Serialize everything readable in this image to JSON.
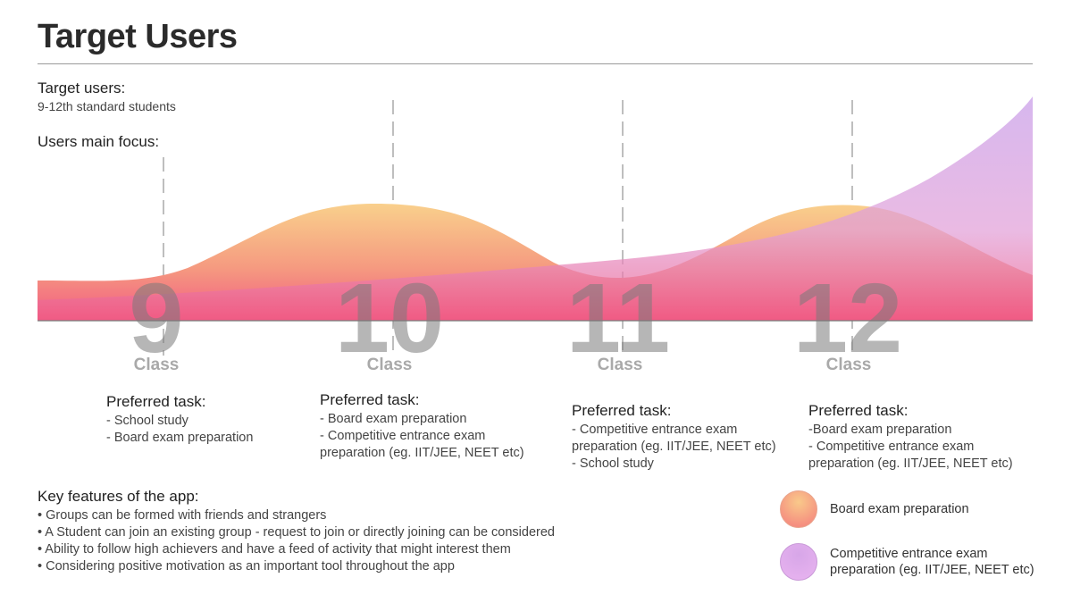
{
  "title": "Target Users",
  "target_users": {
    "label": "Target users:",
    "value": "9-12th standard students"
  },
  "focus_label": "Users main focus:",
  "classes": [
    {
      "number": "9",
      "label": "Class"
    },
    {
      "number": "10",
      "label": "Class"
    },
    {
      "number": "11",
      "label": "Class"
    },
    {
      "number": "12",
      "label": "Class"
    }
  ],
  "tasks": [
    {
      "heading": "Preferred task:",
      "items": [
        "- School study",
        "- Board exam preparation"
      ]
    },
    {
      "heading": "Preferred task:",
      "items": [
        "- Board exam preparation",
        "- Competitive entrance exam",
        "preparation (eg. IIT/JEE, NEET etc)"
      ]
    },
    {
      "heading": "Preferred task:",
      "items": [
        "- Competitive entrance exam",
        "preparation (eg. IIT/JEE, NEET etc)",
        "- School study"
      ]
    },
    {
      "heading": "Preferred task:",
      "items": [
        "-Board exam preparation",
        "- Competitive entrance exam",
        "preparation (eg. IIT/JEE, NEET etc)"
      ]
    }
  ],
  "features": {
    "heading": "Key features of the app:",
    "items": [
      "• Groups can be formed with friends and strangers",
      "• A Student can join an existing group - request to join or directly joining can be considered",
      "• Ability to follow high achievers and have a feed of activity that might interest them",
      "• Considering  positive motivation as an important tool throughout the app"
    ]
  },
  "legend": [
    {
      "label": "Board exam preparation",
      "color": "#f7a77f"
    },
    {
      "label": "Competitive entrance exam\npreparation (eg. IIT/JEE, NEET etc)",
      "color": "#d9a8ec"
    }
  ],
  "colors": {
    "board_top": "#f9cf8c",
    "board_bottom": "#f35a82",
    "competitive_top": "#c89ae6",
    "competitive_bottom": "#f05a84"
  }
}
